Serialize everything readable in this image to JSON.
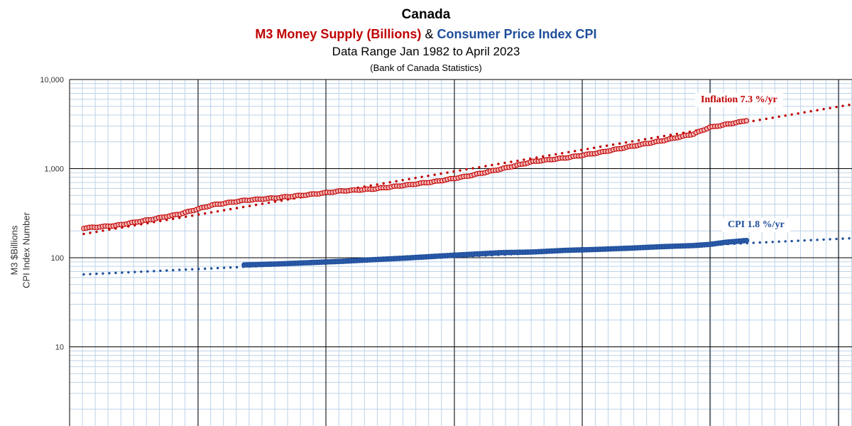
{
  "chart_data": {
    "type": "scatter",
    "title": "Canada",
    "subtitle_m3": "M3 Money Supply (Billions)",
    "subtitle_amp": "&",
    "subtitle_cpi": "Consumer Price Index CPI",
    "subtitle_range": "Data Range Jan 1982 to April 2023",
    "subtitle_source": "(Bank of Canada Statistics)",
    "ylabel_line1": "M3  $Billions",
    "ylabel_line2": "CPI Index Number",
    "yscale": "log",
    "ylim": [
      1,
      10000
    ],
    "y_ticks": [
      {
        "value": 10000,
        "label": "10,000"
      },
      {
        "value": 1000,
        "label": "1,000"
      },
      {
        "value": 100,
        "label": "100"
      },
      {
        "value": 10,
        "label": "10"
      }
    ],
    "grid": true,
    "series": [
      {
        "name": "M3 Money Supply (Billions)",
        "color": "#c00000",
        "points": [
          [
            1982.0,
            215
          ],
          [
            1984.0,
            230
          ],
          [
            1986.0,
            265
          ],
          [
            1988.0,
            310
          ],
          [
            1990.0,
            390
          ],
          [
            1992.0,
            440
          ],
          [
            1994.0,
            470
          ],
          [
            1996.0,
            510
          ],
          [
            1998.0,
            560
          ],
          [
            2000.0,
            590
          ],
          [
            2002.0,
            650
          ],
          [
            2004.0,
            720
          ],
          [
            2006.0,
            830
          ],
          [
            2008.0,
            990
          ],
          [
            2010.0,
            1200
          ],
          [
            2012.0,
            1320
          ],
          [
            2014.0,
            1500
          ],
          [
            2016.0,
            1760
          ],
          [
            2018.0,
            2050
          ],
          [
            2020.0,
            2450
          ],
          [
            2021.0,
            2900
          ],
          [
            2023.3,
            3450
          ]
        ]
      },
      {
        "name": "Consumer Price Index CPI",
        "color": "#1f4e9a",
        "points": [
          [
            1992.0,
            83
          ],
          [
            1994.0,
            85
          ],
          [
            1996.0,
            88
          ],
          [
            1998.0,
            91
          ],
          [
            2000.0,
            95
          ],
          [
            2002.0,
            99
          ],
          [
            2004.0,
            104
          ],
          [
            2006.0,
            109
          ],
          [
            2008.0,
            114
          ],
          [
            2010.0,
            116
          ],
          [
            2012.0,
            121
          ],
          [
            2014.0,
            124
          ],
          [
            2016.0,
            128
          ],
          [
            2018.0,
            133
          ],
          [
            2020.0,
            137
          ],
          [
            2021.0,
            141
          ],
          [
            2022.0,
            149
          ],
          [
            2023.3,
            156
          ]
        ]
      }
    ],
    "trendlines": [
      {
        "name": "M3 trend",
        "color": "#c00000",
        "start": [
          1982.0,
          185
        ],
        "end": [
          2029.7,
          5200
        ],
        "label": "Inflation 7.3 %/yr"
      },
      {
        "name": "CPI trend",
        "color": "#1f4e9a",
        "start": [
          1982.0,
          65
        ],
        "end": [
          2029.7,
          165
        ],
        "label": "CPI 1.8 %/yr"
      }
    ]
  }
}
